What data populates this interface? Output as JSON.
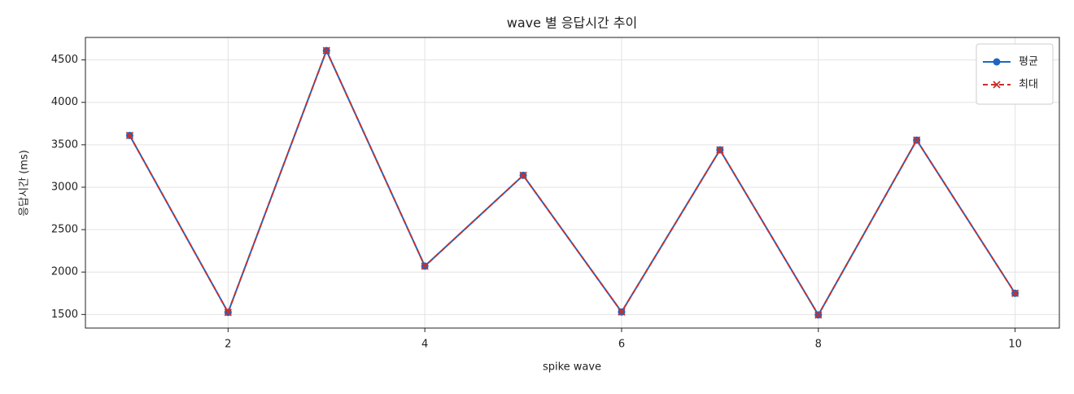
{
  "chart_data": {
    "type": "line",
    "title": "wave 별 응답시간 추이",
    "xlabel": "spike wave",
    "ylabel": "응답시간 (ms)",
    "x": [
      1,
      2,
      3,
      4,
      5,
      6,
      7,
      8,
      9,
      10
    ],
    "series": [
      {
        "name": "평균",
        "color": "#1f66c2",
        "marker": "o",
        "linestyle": "solid",
        "values": [
          3610,
          1525,
          4610,
          2070,
          3140,
          1530,
          3440,
          1495,
          3555,
          1750
        ]
      },
      {
        "name": "최대",
        "color": "#c9302c",
        "marker": "x",
        "linestyle": "dashed",
        "values": [
          3610,
          1525,
          4610,
          2070,
          3140,
          1530,
          3440,
          1495,
          3555,
          1750
        ]
      }
    ],
    "xlim": [
      0.55,
      10.45
    ],
    "ylim": [
      1340,
      4765
    ],
    "xticks": [
      2,
      4,
      6,
      8,
      10
    ],
    "yticks": [
      1500,
      2000,
      2500,
      3000,
      3500,
      4000,
      4500
    ],
    "grid": true,
    "legend": "upper right"
  }
}
